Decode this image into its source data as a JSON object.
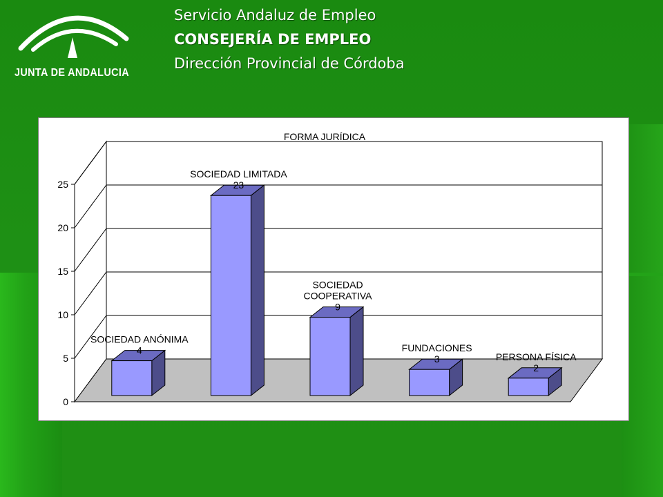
{
  "header": {
    "line1": "Servicio Andaluz de Empleo",
    "line2": "CONSEJERÍA DE EMPLEO",
    "line3": "Dirección Provincial de Córdoba"
  },
  "logo": {
    "text": "JUNTA DE ANDALUCIA",
    "icon": "junta-andalucia-arch-icon"
  },
  "colors": {
    "background": "#1d8c12",
    "bar_front": "#9999ff",
    "bar_side": "#4d4d8a",
    "bar_top": "#6b6bc2",
    "floor": "#c0c0c0"
  },
  "chart_data": {
    "type": "bar",
    "title": "FORMA JURÍDICA",
    "categories": [
      "SOCIEDAD ANÓNIMA",
      "SOCIEDAD LIMITADA",
      "SOCIEDAD COOPERATIVA",
      "FUNDACIONES",
      "PERSONA FÍSICA"
    ],
    "labels": [
      [
        "SOCIEDAD ANÓNIMA"
      ],
      [
        "SOCIEDAD LIMITADA"
      ],
      [
        "SOCIEDAD",
        "COOPERATIVA"
      ],
      [
        "FUNDACIONES"
      ],
      [
        "PERSONA FÍSICA"
      ]
    ],
    "values": [
      4,
      23,
      9,
      3,
      2
    ],
    "ylim": [
      0,
      25
    ],
    "yticks": [
      0,
      5,
      10,
      15,
      20,
      25
    ],
    "grid": true,
    "three_d": true
  }
}
